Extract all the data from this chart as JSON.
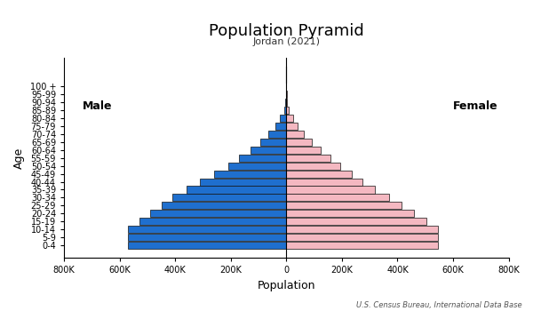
{
  "title": "Population Pyramid",
  "subtitle": "Jordan (2021)",
  "xlabel": "Population",
  "ylabel": "Age",
  "source": "U.S. Census Bureau, International Data Base",
  "age_groups": [
    "0-4",
    "5-9",
    "10-14",
    "15-19",
    "20-24",
    "25-29",
    "30-34",
    "35-39",
    "40-44",
    "45-49",
    "50-54",
    "55-59",
    "60-64",
    "65-69",
    "70-74",
    "75-79",
    "80-84",
    "85-89",
    "90-94",
    "95-99",
    "100 +"
  ],
  "male": [
    570000,
    570000,
    570000,
    530000,
    490000,
    450000,
    410000,
    360000,
    310000,
    260000,
    210000,
    170000,
    130000,
    95000,
    65000,
    40000,
    22000,
    9000,
    3000,
    800,
    200
  ],
  "female": [
    545000,
    545000,
    545000,
    505000,
    460000,
    415000,
    370000,
    320000,
    275000,
    235000,
    195000,
    160000,
    125000,
    90000,
    62000,
    40000,
    24000,
    10000,
    3500,
    900,
    200
  ],
  "male_color": "#1f6fce",
  "female_color": "#f4b8c1",
  "bar_edgecolor": "#111111",
  "bar_linewidth": 0.5,
  "xlim": 800000,
  "background_color": "#ffffff",
  "male_label": "Male",
  "female_label": "Female"
}
